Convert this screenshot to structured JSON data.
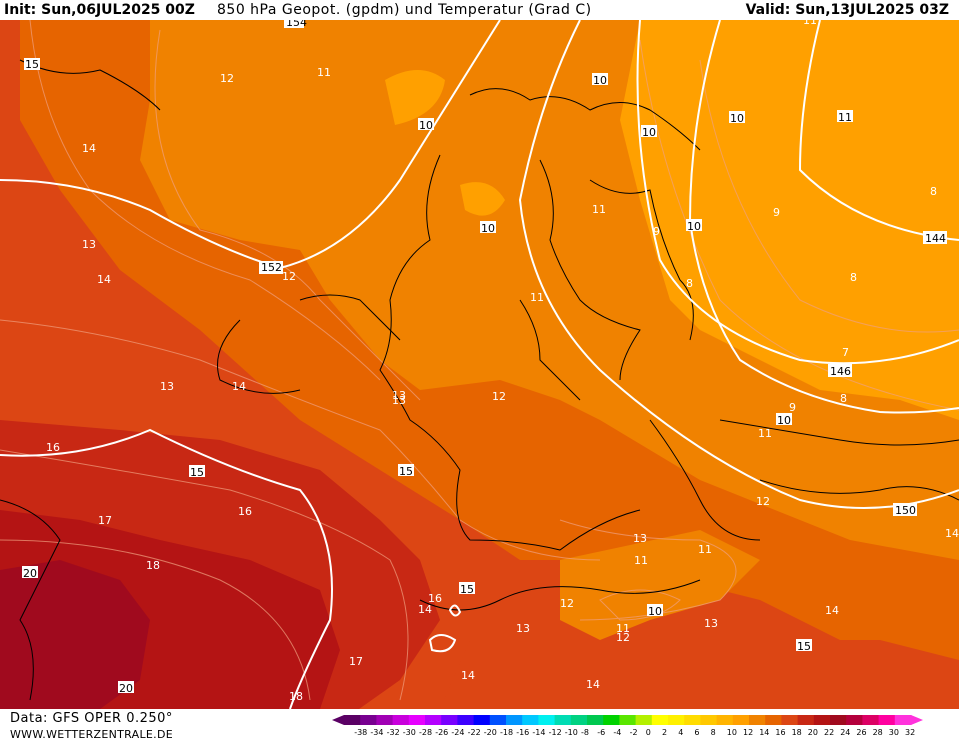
{
  "header": {
    "init": "Init: Sun,06JUL2025 00Z",
    "title": "850 hPa Geopot. (gpdm) und Temperatur (Grad C)",
    "valid": "Valid: Sun,13JUL2025 03Z"
  },
  "footer": {
    "data_source": "Data: GFS OPER 0.250°",
    "website": "WWW.WETTERZENTRALE.DE"
  },
  "legend": {
    "ticks": [
      "-38",
      "-34",
      "-32",
      "-30",
      "-28",
      "-26",
      "-24",
      "-22",
      "-20",
      "-18",
      "-16",
      "-14",
      "-12",
      "-10",
      "-8",
      "-6",
      "-4",
      "-2",
      "0",
      "2",
      "4",
      "6",
      "8",
      "10",
      "12",
      "14",
      "16",
      "18",
      "20",
      "22",
      "24",
      "26",
      "28",
      "30",
      "32"
    ],
    "colors": [
      "#5a0064",
      "#780090",
      "#a000b4",
      "#c800dc",
      "#e600ff",
      "#b400ff",
      "#7800ff",
      "#3c00ff",
      "#0000ff",
      "#0050ff",
      "#0096ff",
      "#00c8ff",
      "#00f0f0",
      "#00dcb4",
      "#00d282",
      "#00c850",
      "#00d200",
      "#5ae600",
      "#b4f000",
      "#ffff00",
      "#fff000",
      "#ffdc00",
      "#ffc800",
      "#ffb400",
      "#ffa000",
      "#f08200",
      "#e66400",
      "#dc4614",
      "#c82814",
      "#b41414",
      "#a00a1e",
      "#b4003c",
      "#dc0064",
      "#ff00a0",
      "#ff32dc"
    ]
  },
  "map": {
    "colors": {
      "t20": "#a00a1e",
      "t18": "#b41414",
      "t16": "#c82814",
      "t14": "#dc4614",
      "t12": "#e66400",
      "t10": "#f08200",
      "t8": "#ffa000"
    },
    "geopotential_labels": [
      "154",
      "152",
      "150",
      "146",
      "144"
    ],
    "temperature_labels": [
      "15",
      "14",
      "13",
      "14",
      "12",
      "11",
      "12",
      "11",
      "10",
      "10",
      "10",
      "10",
      "10",
      "11",
      "10",
      "9",
      "8",
      "9",
      "8",
      "7",
      "8",
      "8",
      "9",
      "11",
      "10",
      "11",
      "12",
      "12",
      "13",
      "13",
      "13",
      "14",
      "14",
      "15",
      "15",
      "16",
      "17",
      "18",
      "20",
      "20",
      "17",
      "18",
      "16",
      "14",
      "14",
      "13",
      "12",
      "11",
      "11",
      "12",
      "13",
      "11",
      "10",
      "14",
      "15",
      "14",
      "15",
      "13",
      "16",
      "11"
    ]
  }
}
